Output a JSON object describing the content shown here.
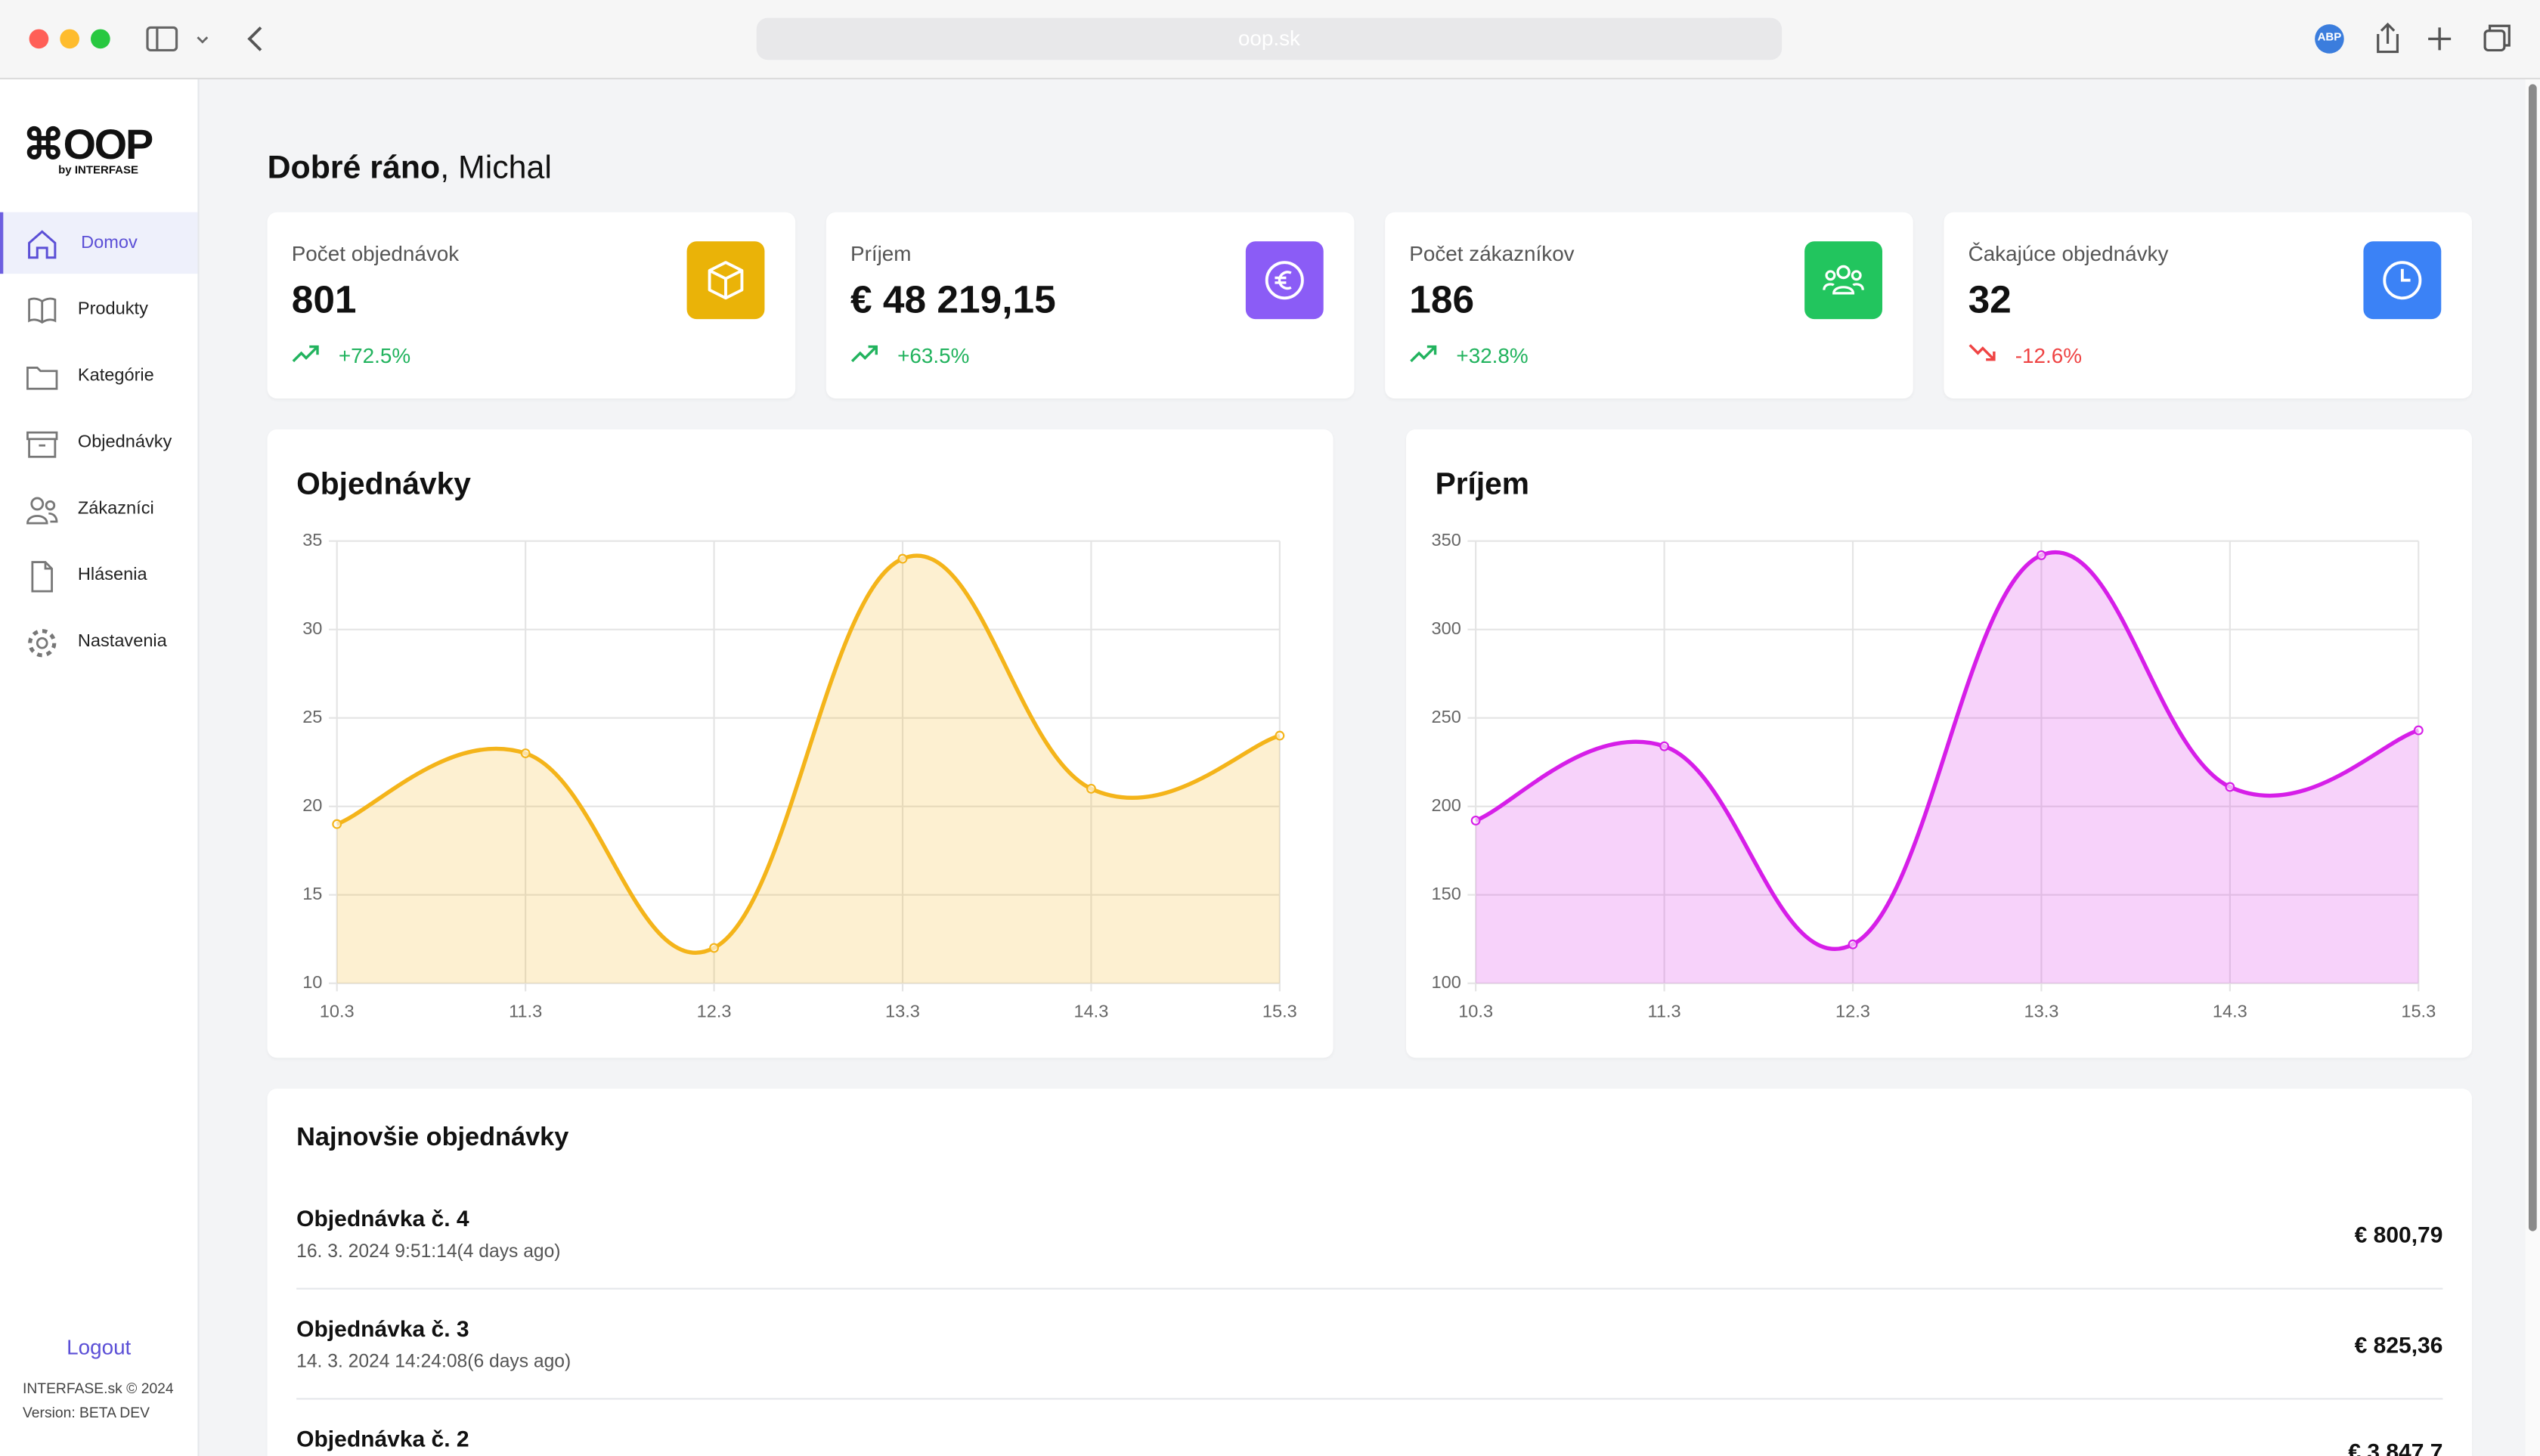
{
  "browser": {
    "url": "oop.sk",
    "extension": "ABP"
  },
  "sidebar": {
    "logo": "⌘OOP",
    "logo_by": "by INTERFASE",
    "nav": [
      "Domov",
      "Produkty",
      "Kategórie",
      "Objednávky",
      "Zákazníci",
      "Hlásenia",
      "Nastavenia"
    ],
    "logout": "Logout",
    "footer": [
      "INTERFASE.sk © 2024",
      "Version: BETA DEV"
    ]
  },
  "greeting": {
    "bold": "Dobré ráno",
    "rest": ", Michal"
  },
  "stats": [
    {
      "label": "Počet objednávok",
      "value": "801",
      "change": "+72.5%"
    },
    {
      "label": "Príjem",
      "value": "€ 48 219,15",
      "change": "+63.5%"
    },
    {
      "label": "Počet zákazníkov",
      "value": "186",
      "change": "+32.8%"
    },
    {
      "label": "Čakajúce objednávky",
      "value": "32",
      "change": "-12.6%"
    }
  ],
  "chart_data": [
    {
      "type": "line",
      "title": "Objednávky",
      "categories": [
        "10.3",
        "11.3",
        "12.3",
        "13.3",
        "14.3",
        "15.3"
      ],
      "values": [
        19,
        23,
        12,
        34,
        21,
        24
      ],
      "color": "#f4b41a",
      "ylim": [
        10,
        35
      ],
      "yticks": [
        10,
        15,
        20,
        25,
        30,
        35
      ],
      "grid": true
    },
    {
      "type": "line",
      "title": "Príjem",
      "categories": [
        "10.3",
        "11.3",
        "12.3",
        "13.3",
        "14.3",
        "15.3"
      ],
      "values": [
        192,
        234,
        122,
        342,
        211,
        243
      ],
      "color": "#d61ee8",
      "ylim": [
        100,
        350
      ],
      "yticks": [
        100,
        150,
        200,
        250,
        300,
        350
      ],
      "grid": true
    }
  ],
  "orders": {
    "title": "Najnovšie objednávky",
    "items": [
      {
        "name": "Objednávka č. 4",
        "date": "16. 3. 2024 9:51:14(4 days ago)",
        "price": "€ 800,79"
      },
      {
        "name": "Objednávka č. 3",
        "date": "14. 3. 2024 14:24:08(6 days ago)",
        "price": "€ 825,36"
      },
      {
        "name": "Objednávka č. 2",
        "price": "€ 3 847,7"
      }
    ]
  }
}
